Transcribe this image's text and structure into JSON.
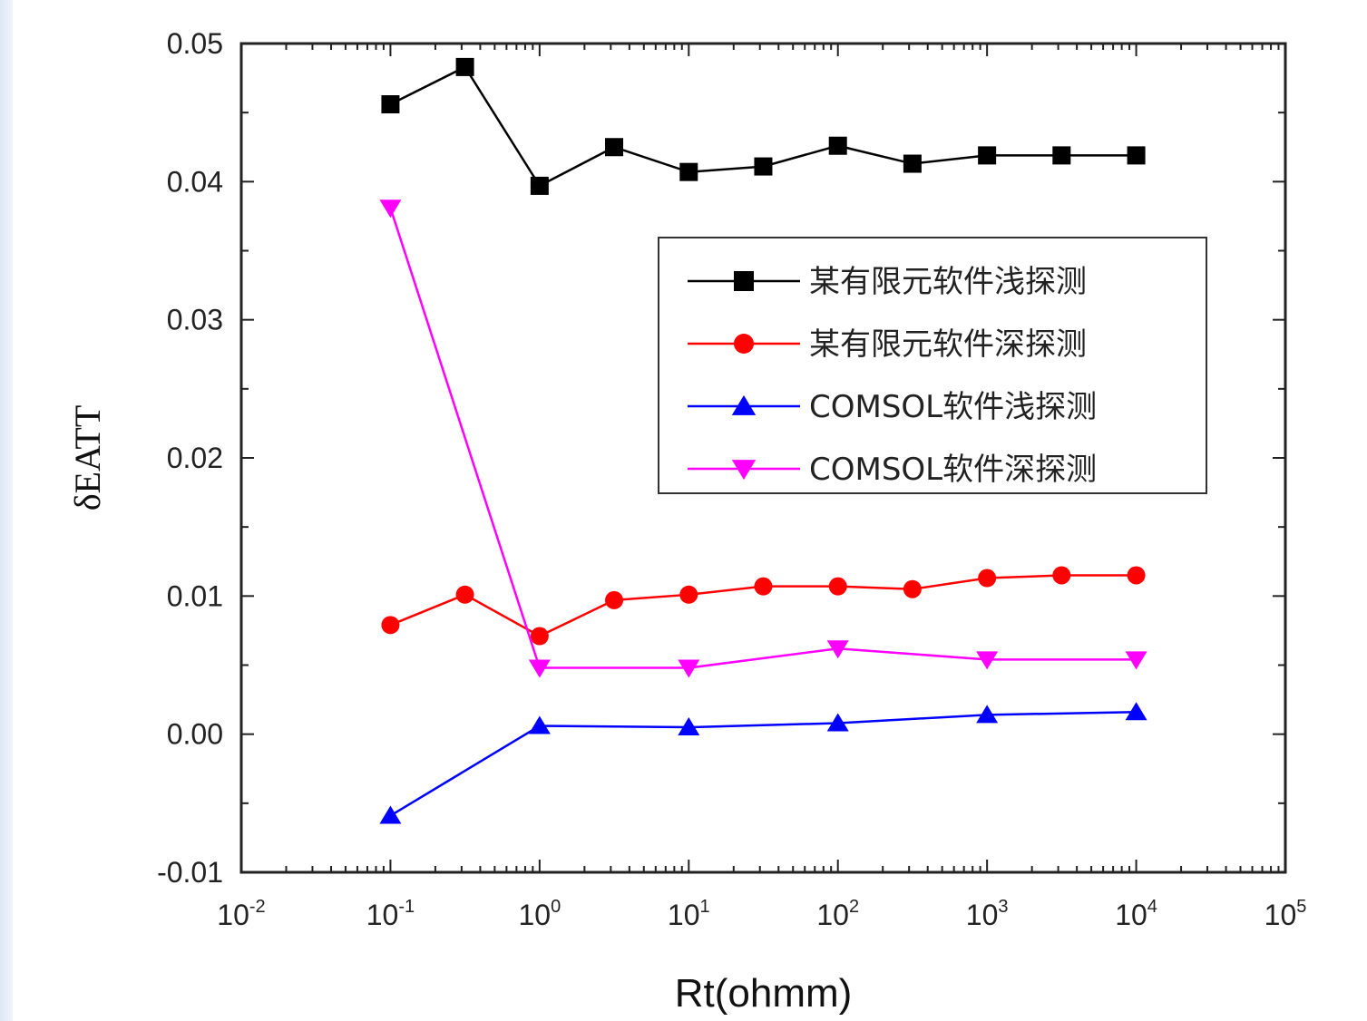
{
  "chart_data": {
    "type": "line",
    "xlabel": "Rt(ohmm)",
    "ylabel": "δEATT",
    "xscale": "log",
    "xlim": [
      0.01,
      100000
    ],
    "ylim": [
      -0.01,
      0.05
    ],
    "x_ticks": [
      {
        "base": "10",
        "exp": "-2"
      },
      {
        "base": "10",
        "exp": "-1"
      },
      {
        "base": "10",
        "exp": "0"
      },
      {
        "base": "10",
        "exp": "1"
      },
      {
        "base": "10",
        "exp": "2"
      },
      {
        "base": "10",
        "exp": "3"
      },
      {
        "base": "10",
        "exp": "4"
      },
      {
        "base": "10",
        "exp": "5"
      }
    ],
    "y_ticks": [
      "-0.01",
      "0.00",
      "0.01",
      "0.02",
      "0.03",
      "0.04",
      "0.05"
    ],
    "legend_position": "upper-right",
    "series": [
      {
        "name": "某有限元软件浅探测",
        "color": "#000000",
        "marker": "square",
        "x": [
          0.1,
          0.316,
          1,
          3.16,
          10,
          31.6,
          100,
          316,
          1000,
          3160,
          10000
        ],
        "y": [
          0.0456,
          0.0483,
          0.0397,
          0.0425,
          0.0407,
          0.0411,
          0.0426,
          0.0413,
          0.0419,
          0.0419,
          0.0419
        ]
      },
      {
        "name": "某有限元软件深探测",
        "color": "#ff0000",
        "marker": "circle",
        "x": [
          0.1,
          0.316,
          1,
          3.16,
          10,
          31.6,
          100,
          316,
          1000,
          3160,
          10000
        ],
        "y": [
          0.0079,
          0.0101,
          0.0071,
          0.0097,
          0.0101,
          0.0107,
          0.0107,
          0.0105,
          0.0113,
          0.0115,
          0.0115
        ]
      },
      {
        "name": "COMSOL软件浅探测",
        "color": "#0000ff",
        "marker": "triangle-up",
        "x": [
          0.1,
          1,
          10,
          100,
          1000,
          10000
        ],
        "y": [
          -0.0059,
          0.0006,
          0.0005,
          0.0008,
          0.0014,
          0.0016
        ]
      },
      {
        "name": "COMSOL软件深探测",
        "color": "#ff00ff",
        "marker": "triangle-down",
        "x": [
          0.1,
          1,
          10,
          100,
          1000,
          10000
        ],
        "y": [
          0.0381,
          0.0048,
          0.0048,
          0.0062,
          0.0054,
          0.0054
        ]
      }
    ]
  }
}
